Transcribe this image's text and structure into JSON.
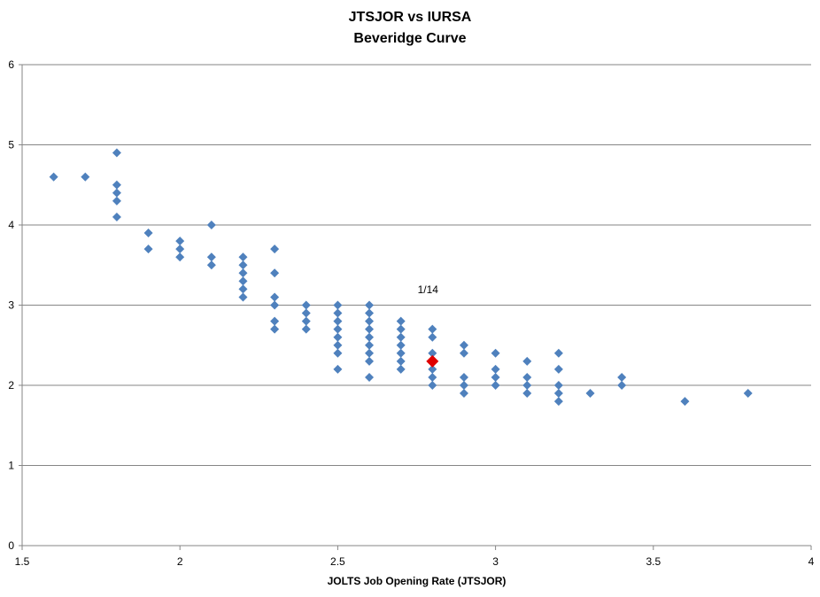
{
  "chart_data": {
    "type": "scatter",
    "title": "JTSJOR vs IURSA",
    "subtitle": "Beveridge Curve",
    "xlabel": "JOLTS Job Opening Rate (JTSJOR)",
    "ylabel": "",
    "xlim": [
      1.5,
      4
    ],
    "ylim": [
      0,
      6
    ],
    "x_ticks": [
      "1.5",
      "2",
      "2.5",
      "3",
      "3.5",
      "4"
    ],
    "y_ticks": [
      "0",
      "1",
      "2",
      "3",
      "4",
      "5",
      "6"
    ],
    "grid": "horizontal",
    "legend": "none",
    "series_color": "#4F81BD",
    "highlight_color": "#E00000",
    "series": [
      {
        "points": [
          [
            1.6,
            4.6
          ],
          [
            1.7,
            4.6
          ],
          [
            1.8,
            4.9
          ],
          [
            1.8,
            4.5
          ],
          [
            1.8,
            4.4
          ],
          [
            1.8,
            4.3
          ],
          [
            1.8,
            4.1
          ],
          [
            1.9,
            3.9
          ],
          [
            1.9,
            3.7
          ],
          [
            2.0,
            3.8
          ],
          [
            2.0,
            3.7
          ],
          [
            2.0,
            3.6
          ],
          [
            2.1,
            4.0
          ],
          [
            2.1,
            3.6
          ],
          [
            2.1,
            3.5
          ],
          [
            2.2,
            3.6
          ],
          [
            2.2,
            3.5
          ],
          [
            2.2,
            3.4
          ],
          [
            2.2,
            3.3
          ],
          [
            2.2,
            3.2
          ],
          [
            2.2,
            3.1
          ],
          [
            2.3,
            3.7
          ],
          [
            2.3,
            3.4
          ],
          [
            2.3,
            3.1
          ],
          [
            2.3,
            3.0
          ],
          [
            2.3,
            2.8
          ],
          [
            2.3,
            2.7
          ],
          [
            2.4,
            3.0
          ],
          [
            2.4,
            2.9
          ],
          [
            2.4,
            2.8
          ],
          [
            2.4,
            2.7
          ],
          [
            2.5,
            3.0
          ],
          [
            2.5,
            2.9
          ],
          [
            2.5,
            2.8
          ],
          [
            2.5,
            2.7
          ],
          [
            2.5,
            2.6
          ],
          [
            2.5,
            2.5
          ],
          [
            2.5,
            2.4
          ],
          [
            2.5,
            2.2
          ],
          [
            2.6,
            3.0
          ],
          [
            2.6,
            2.9
          ],
          [
            2.6,
            2.8
          ],
          [
            2.6,
            2.7
          ],
          [
            2.6,
            2.6
          ],
          [
            2.6,
            2.5
          ],
          [
            2.6,
            2.4
          ],
          [
            2.6,
            2.3
          ],
          [
            2.6,
            2.1
          ],
          [
            2.7,
            2.8
          ],
          [
            2.7,
            2.7
          ],
          [
            2.7,
            2.6
          ],
          [
            2.7,
            2.5
          ],
          [
            2.7,
            2.4
          ],
          [
            2.7,
            2.3
          ],
          [
            2.7,
            2.2
          ],
          [
            2.8,
            2.7
          ],
          [
            2.8,
            2.6
          ],
          [
            2.8,
            2.4
          ],
          [
            2.8,
            2.2
          ],
          [
            2.8,
            2.1
          ],
          [
            2.8,
            2.0
          ],
          [
            2.9,
            2.5
          ],
          [
            2.9,
            2.4
          ],
          [
            2.9,
            2.1
          ],
          [
            2.9,
            2.0
          ],
          [
            2.9,
            1.9
          ],
          [
            3.0,
            2.4
          ],
          [
            3.0,
            2.2
          ],
          [
            3.0,
            2.1
          ],
          [
            3.0,
            2.0
          ],
          [
            3.1,
            2.3
          ],
          [
            3.1,
            2.1
          ],
          [
            3.1,
            2.0
          ],
          [
            3.1,
            1.9
          ],
          [
            3.2,
            2.4
          ],
          [
            3.2,
            2.2
          ],
          [
            3.2,
            2.0
          ],
          [
            3.2,
            1.9
          ],
          [
            3.2,
            1.8
          ],
          [
            3.3,
            1.9
          ],
          [
            3.4,
            2.1
          ],
          [
            3.4,
            2.0
          ],
          [
            3.6,
            1.8
          ],
          [
            3.8,
            1.9
          ]
        ]
      }
    ],
    "highlight": {
      "x": 2.8,
      "y": 2.3,
      "label": "1/14"
    }
  }
}
